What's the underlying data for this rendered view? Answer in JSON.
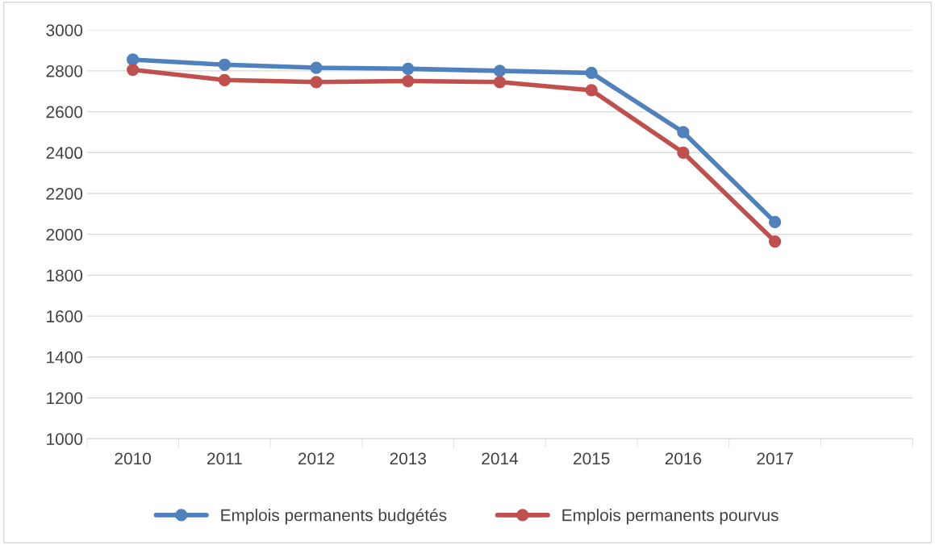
{
  "chart_data": {
    "type": "line",
    "categories": [
      "2010",
      "2011",
      "2012",
      "2013",
      "2014",
      "2015",
      "2016",
      "2017",
      null
    ],
    "series": [
      {
        "name": "Emplois permanents budgétés",
        "color": "#4f81bd",
        "values": [
          2855,
          2830,
          2815,
          2810,
          2800,
          2790,
          2500,
          2060,
          null
        ]
      },
      {
        "name": "Emplois permanents pourvus",
        "color": "#c0504d",
        "values": [
          2805,
          2755,
          2745,
          2750,
          2745,
          2705,
          2400,
          1965,
          null
        ]
      }
    ],
    "ylim": [
      1000,
      3000
    ],
    "yticks": [
      1000,
      1200,
      1400,
      1600,
      1800,
      2000,
      2200,
      2400,
      2600,
      2800,
      3000
    ],
    "grid": "y",
    "legend": "bottom",
    "marker": "circle",
    "line_style": "solid"
  }
}
